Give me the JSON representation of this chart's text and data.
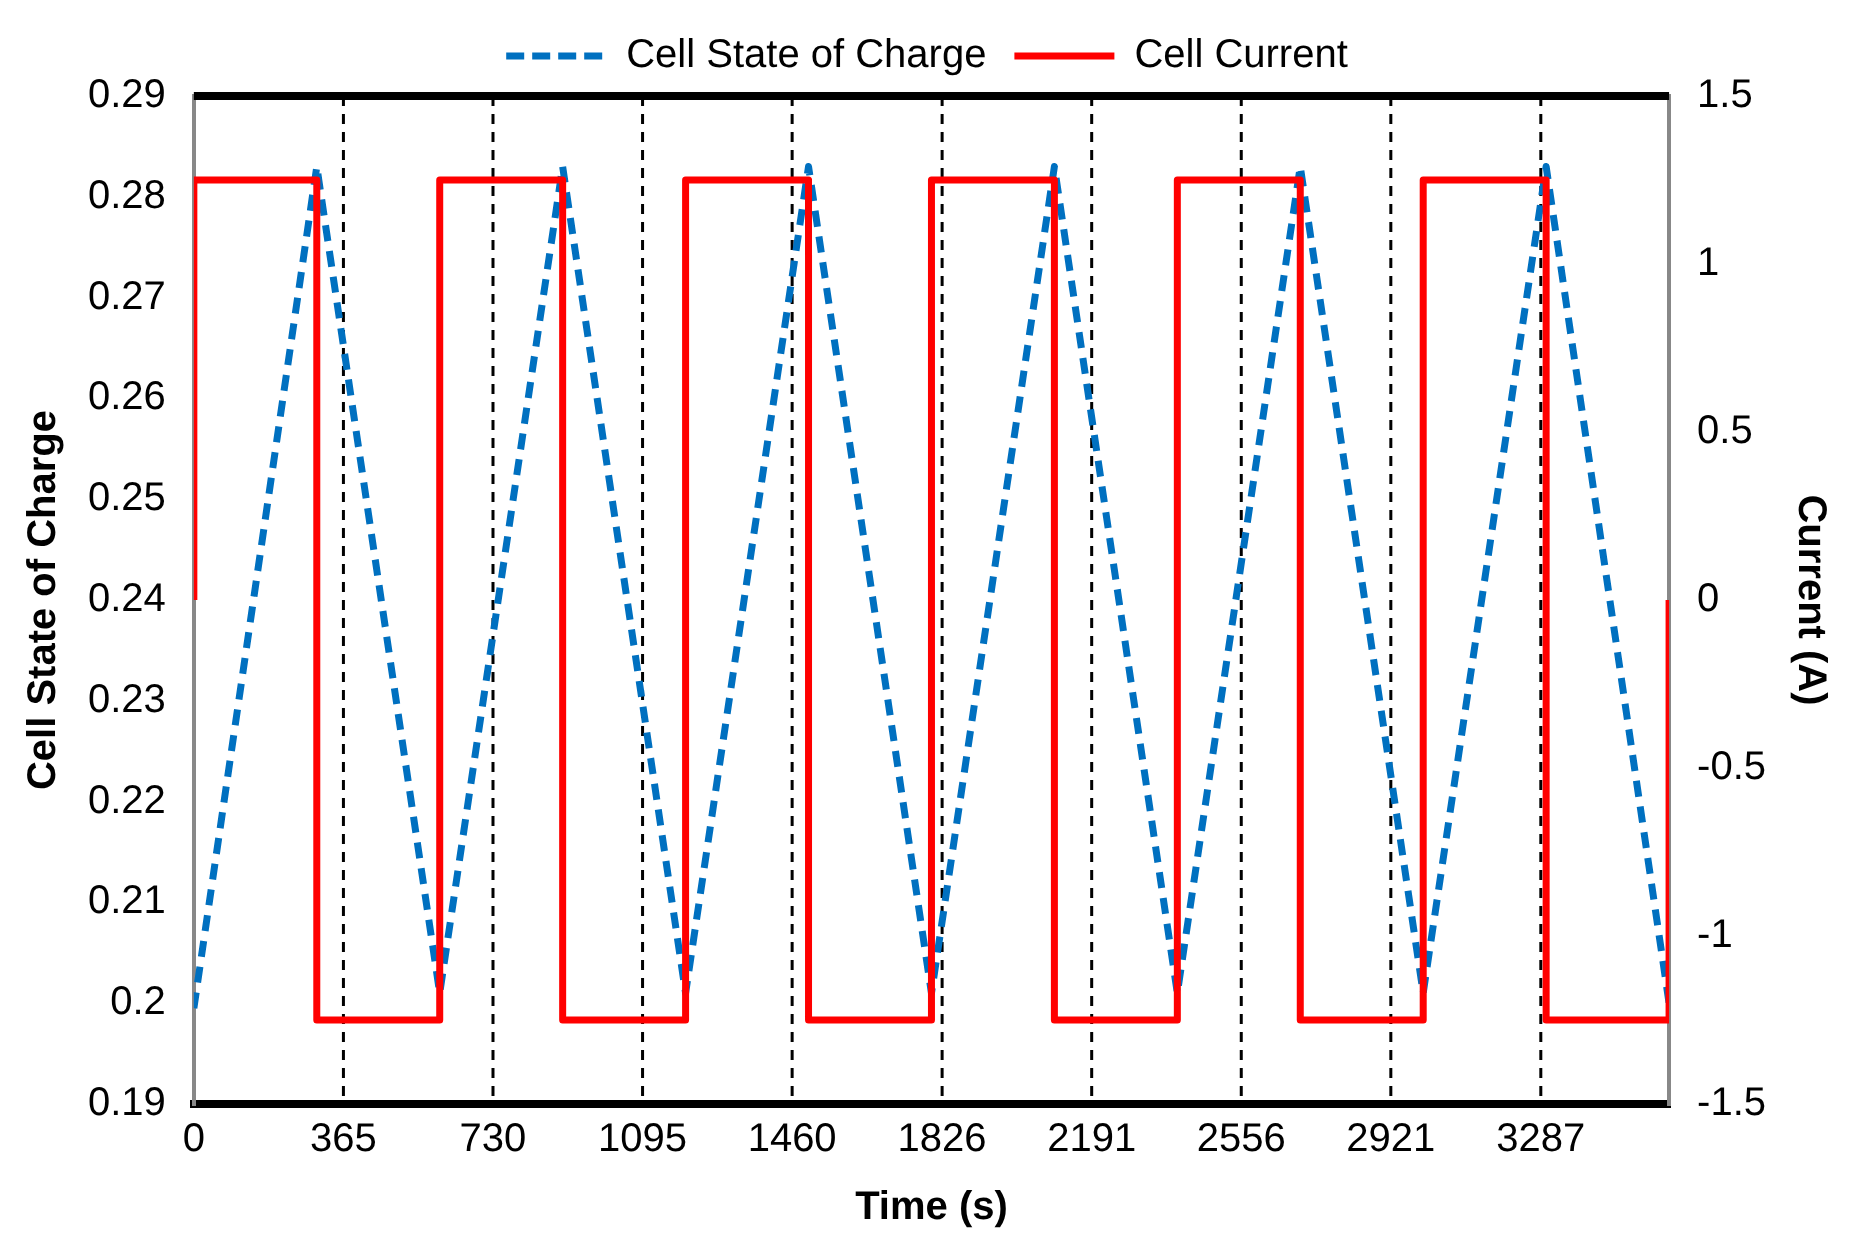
{
  "chart_data": {
    "type": "line",
    "xlabel": "Time (s)",
    "ylabel": "Cell State of Charge",
    "y2label": "Current (A)",
    "xlim": [
      0,
      3600
    ],
    "xticks": [
      0,
      365,
      730,
      1095,
      1460,
      1826,
      2191,
      2556,
      2921,
      3287
    ],
    "ylim": [
      0.19,
      0.29
    ],
    "yticks": [
      0.19,
      0.2,
      0.21,
      0.22,
      0.23,
      0.24,
      0.25,
      0.26,
      0.27,
      0.28,
      0.29
    ],
    "y2lim": [
      -1.5,
      1.5
    ],
    "y2ticks": [
      -1.5,
      -1,
      -0.5,
      0,
      0.5,
      1,
      1.5
    ],
    "grid": "x",
    "legend": "top",
    "marker": "none",
    "series": [
      {
        "name": "Cell State of Charge",
        "type": "line",
        "line_style": "dashed",
        "color": "#0070c0",
        "x": [
          0,
          300,
          600,
          900,
          1200,
          1500,
          1800,
          2100,
          2400,
          2700,
          3000,
          3300,
          3600
        ],
        "values": [
          0.1995,
          0.283,
          0.201,
          0.283,
          0.201,
          0.283,
          0.201,
          0.283,
          0.201,
          0.283,
          0.201,
          0.283,
          0.2
        ]
      },
      {
        "name": "Cell Current",
        "type": "step",
        "line_style": "solid",
        "axis": "y2",
        "color": "#ff0000",
        "x": [
          0,
          0,
          300,
          600,
          900,
          1200,
          1500,
          1800,
          2100,
          2400,
          2700,
          3000,
          3300,
          3600,
          3600
        ],
        "values": [
          0,
          1.25,
          -1.25,
          1.25,
          -1.25,
          1.25,
          -1.25,
          1.25,
          -1.25,
          1.25,
          -1.25,
          1.25,
          -1.25,
          -1.25,
          0
        ]
      }
    ]
  }
}
